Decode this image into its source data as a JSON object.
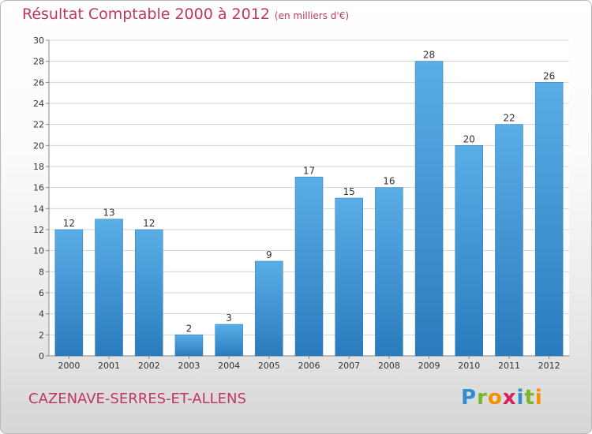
{
  "header": {
    "title": "Résultat Comptable 2000 à 2012",
    "unit": "(en milliers d'€)"
  },
  "footer": {
    "city": "CAZENAVE-SERRES-ET-ALLENS"
  },
  "logo": {
    "text": "Proxiti",
    "letters": [
      {
        "char": "P",
        "color": "#2f8ccd"
      },
      {
        "char": "r",
        "color": "#76b82a"
      },
      {
        "char": "o",
        "color": "#f39200"
      },
      {
        "char": "x",
        "color": "#d6215b"
      },
      {
        "char": "i",
        "color": "#2f8ccd"
      },
      {
        "char": "t",
        "color": "#76b82a"
      },
      {
        "char": "i",
        "color": "#f39200"
      }
    ]
  },
  "colors": {
    "accent": "#c0375e",
    "bar_light": "#5aaee6",
    "bar_dark": "#2a7bbd"
  },
  "chart_data": {
    "type": "bar",
    "title": "Résultat Comptable 2000 à 2012",
    "subtitle": "(en milliers d'€)",
    "xlabel": "",
    "ylabel": "",
    "categories": [
      "2000",
      "2001",
      "2002",
      "2003",
      "2004",
      "2005",
      "2006",
      "2007",
      "2008",
      "2009",
      "2010",
      "2011",
      "2012"
    ],
    "values": [
      12,
      13,
      12,
      2,
      3,
      9,
      17,
      15,
      16,
      28,
      20,
      22,
      26
    ],
    "ylim": [
      0,
      30
    ],
    "yticks": [
      0,
      2,
      4,
      6,
      8,
      10,
      12,
      14,
      16,
      18,
      20,
      22,
      24,
      26,
      28,
      30
    ],
    "grid": true,
    "legend": "none"
  }
}
